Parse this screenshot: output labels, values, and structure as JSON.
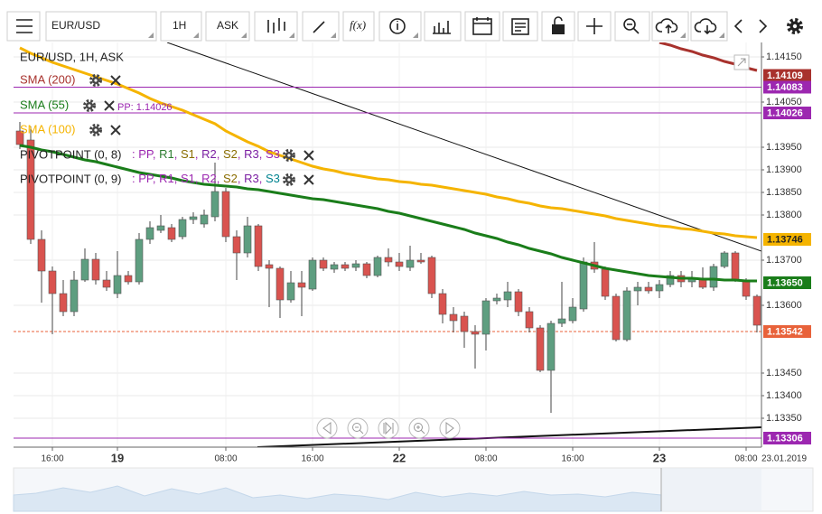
{
  "toolbar": {
    "symbol": "EUR/USD",
    "interval": "1H",
    "price_type": "ASK",
    "function_label": "f(x)"
  },
  "chart_data": {
    "type": "candlestick",
    "title": "EUR/USD, 1H, ASK",
    "date_label": "23.01.2019",
    "categories": [
      null,
      null,
      null,
      "16:00",
      null,
      null,
      null,
      null,
      null,
      "19",
      null,
      null,
      null,
      null,
      null,
      null,
      null,
      null,
      null,
      "08:00",
      null,
      null,
      null,
      null,
      null,
      null,
      null,
      "16:00",
      null,
      null,
      null,
      null,
      null,
      null,
      null,
      "22",
      null,
      null,
      null,
      null,
      null,
      null,
      null,
      "08:00",
      null,
      null,
      null,
      null,
      null,
      null,
      null,
      "16:00",
      null,
      null,
      null,
      null,
      null,
      null,
      null,
      "23",
      null,
      null,
      null,
      null,
      null,
      null,
      null,
      "08:00",
      null
    ],
    "open": [
      1.13986,
      1.13966,
      1.13746,
      1.13676,
      1.13626,
      1.13586,
      1.13656,
      1.13702,
      1.13656,
      1.13626,
      1.13666,
      1.13652,
      1.13746,
      1.13766,
      1.13772,
      1.13752,
      1.1379,
      1.1378,
      1.13796,
      1.13852,
      1.13752,
      1.13716,
      1.13776,
      1.1369,
      1.13682,
      1.13612,
      1.1365,
      1.13636,
      1.137,
      1.1368,
      1.1369,
      1.13684,
      1.13692,
      1.13666,
      1.13706,
      1.13696,
      1.13684,
      1.137,
      1.13706,
      1.13626,
      1.1358,
      1.13576,
      1.13542,
      1.13536,
      1.1361,
      1.13612,
      1.1363,
      1.13586,
      1.1355,
      1.13456,
      1.1356,
      1.13566,
      1.13592,
      1.13696,
      1.1368,
      1.1362,
      1.13524,
      1.13632,
      1.1364,
      1.13632,
      1.13646,
      1.13666,
      1.13652,
      1.1366,
      1.1364,
      1.13686,
      1.13716,
      1.13656,
      1.1362
    ],
    "high": [
      1.14006,
      1.13996,
      1.13766,
      1.13686,
      1.13656,
      1.13676,
      1.13726,
      1.13716,
      1.13676,
      1.1372,
      1.13676,
      1.1376,
      1.13786,
      1.138,
      1.1378,
      1.13796,
      1.13806,
      1.13812,
      1.13916,
      1.1386,
      1.13766,
      1.13796,
      1.1378,
      1.137,
      1.13686,
      1.13676,
      1.13676,
      1.13706,
      1.13706,
      1.13696,
      1.13696,
      1.137,
      1.13696,
      1.1371,
      1.13726,
      1.13716,
      1.13732,
      1.13716,
      1.1371,
      1.13636,
      1.13596,
      1.13586,
      1.13556,
      1.13616,
      1.13626,
      1.13652,
      1.13636,
      1.13596,
      1.13556,
      1.13566,
      1.13652,
      1.13616,
      1.13706,
      1.1374,
      1.13686,
      1.13626,
      1.1364,
      1.13652,
      1.13652,
      1.13656,
      1.13676,
      1.13676,
      1.13676,
      1.13684,
      1.13692,
      1.1372,
      1.1372,
      1.1366,
      1.13624
    ],
    "low": [
      1.13946,
      1.13736,
      1.13606,
      1.13536,
      1.13576,
      1.13576,
      1.13652,
      1.13646,
      1.13632,
      1.13616,
      1.13646,
      1.13646,
      1.13736,
      1.1376,
      1.1374,
      1.13746,
      1.1378,
      1.13772,
      1.13786,
      1.1374,
      1.13656,
      1.13706,
      1.13676,
      1.13596,
      1.13572,
      1.13606,
      1.13576,
      1.13632,
      1.13676,
      1.13672,
      1.13676,
      1.13676,
      1.1366,
      1.13662,
      1.13686,
      1.13676,
      1.13676,
      1.13692,
      1.13616,
      1.1356,
      1.1354,
      1.13506,
      1.1346,
      1.135,
      1.13602,
      1.13596,
      1.13576,
      1.1354,
      1.13452,
      1.13362,
      1.13552,
      1.1356,
      1.13586,
      1.13672,
      1.13612,
      1.1352,
      1.1352,
      1.136,
      1.13626,
      1.13616,
      1.1364,
      1.1364,
      1.1364,
      1.13636,
      1.13632,
      1.13682,
      1.13652,
      1.13612,
      1.1354
    ],
    "close": [
      1.13956,
      1.13746,
      1.13676,
      1.13626,
      1.13586,
      1.13656,
      1.13702,
      1.13656,
      1.1364,
      1.13666,
      1.13652,
      1.13746,
      1.13772,
      1.13776,
      1.13746,
      1.1379,
      1.13796,
      1.138,
      1.13852,
      1.13752,
      1.13716,
      1.13776,
      1.13686,
      1.13682,
      1.13612,
      1.1365,
      1.1364,
      1.137,
      1.13682,
      1.1369,
      1.13682,
      1.13692,
      1.13666,
      1.13706,
      1.13696,
      1.13686,
      1.137,
      1.13696,
      1.13626,
      1.1358,
      1.13566,
      1.13542,
      1.13536,
      1.1361,
      1.13616,
      1.1363,
      1.13586,
      1.1355,
      1.13456,
      1.1356,
      1.1357,
      1.13596,
      1.13696,
      1.1368,
      1.1362,
      1.13524,
      1.13632,
      1.1364,
      1.13632,
      1.13646,
      1.13666,
      1.13652,
      1.1366,
      1.1364,
      1.13686,
      1.13716,
      1.13656,
      1.1362,
      1.13556
    ],
    "up_color": "#5e9e80",
    "down_color": "#d9534f",
    "series": [
      {
        "name": "SMA (200)",
        "color": "#a8322d",
        "values": [
          null,
          null,
          null,
          null,
          null,
          null,
          null,
          null,
          null,
          null,
          null,
          null,
          null,
          null,
          null,
          null,
          null,
          null,
          null,
          null,
          null,
          null,
          null,
          null,
          null,
          null,
          null,
          null,
          null,
          null,
          null,
          null,
          null,
          null,
          null,
          null,
          null,
          null,
          null,
          null,
          null,
          null,
          null,
          null,
          null,
          null,
          null,
          null,
          null,
          null,
          null,
          null,
          null,
          null,
          null,
          null,
          null,
          null,
          null,
          1.14182,
          1.14176,
          1.14168,
          1.14162,
          1.14154,
          1.14148,
          1.1414,
          1.14134,
          1.14126,
          1.1412
        ]
      },
      {
        "name": "SMA (55)",
        "color": "#1a7d1a",
        "values": [
          1.13954,
          1.1395,
          1.13944,
          1.1394,
          1.13934,
          1.13928,
          1.13922,
          1.13918,
          1.13912,
          1.13906,
          1.139,
          1.13894,
          1.1389,
          1.13886,
          1.13882,
          1.13876,
          1.13872,
          1.13868,
          1.13866,
          1.13864,
          1.13862,
          1.13858,
          1.13856,
          1.13852,
          1.13848,
          1.13844,
          1.1384,
          1.13836,
          1.13834,
          1.1383,
          1.13826,
          1.13822,
          1.13818,
          1.13814,
          1.13808,
          1.13804,
          1.13798,
          1.13792,
          1.13786,
          1.1378,
          1.13774,
          1.13768,
          1.1376,
          1.13754,
          1.13748,
          1.1374,
          1.13734,
          1.13726,
          1.1372,
          1.13714,
          1.13706,
          1.137,
          1.13694,
          1.13688,
          1.13682,
          1.13678,
          1.13674,
          1.1367,
          1.13666,
          1.13664,
          1.13662,
          1.1366,
          1.1366,
          1.13658,
          1.13658,
          1.13656,
          1.13656,
          1.13654,
          1.13654
        ]
      },
      {
        "name": "SMA (100)",
        "color": "#f5b400",
        "values": [
          1.1417,
          1.14158,
          1.14148,
          1.14138,
          1.1413,
          1.14122,
          1.14114,
          1.14106,
          1.14098,
          1.1409,
          1.1408,
          1.1407,
          1.14058,
          1.14048,
          1.1404,
          1.14032,
          1.14022,
          1.14012,
          1.14002,
          1.13986,
          1.13974,
          1.13962,
          1.13952,
          1.1394,
          1.13932,
          1.13924,
          1.13916,
          1.13908,
          1.13902,
          1.13898,
          1.13892,
          1.13888,
          1.13884,
          1.1388,
          1.13878,
          1.13874,
          1.13872,
          1.13868,
          1.13866,
          1.13862,
          1.13858,
          1.13854,
          1.1385,
          1.13846,
          1.1384,
          1.13836,
          1.1383,
          1.13826,
          1.1382,
          1.13816,
          1.13814,
          1.1381,
          1.13806,
          1.13802,
          1.13798,
          1.13792,
          1.13788,
          1.13784,
          1.1378,
          1.13776,
          1.13774,
          1.1377,
          1.13768,
          1.13764,
          1.1376,
          1.13758,
          1.13754,
          1.13752,
          1.1375
        ]
      }
    ],
    "pp_label": "PP: 1.14026",
    "pp_color": "#9c27b0",
    "legend_prefix": ": ",
    "legend_separator": ", ",
    "pivot_indicators": [
      {
        "name": "PIVOTPOINT (0, 8)",
        "levels": [
          {
            "text": "PP",
            "color": "#9c27b0"
          },
          {
            "text": "R1",
            "color": "#2e7d32"
          },
          {
            "text": "S1",
            "color": "#8a6d00"
          },
          {
            "text": "R2",
            "color": "#7b1fa2"
          },
          {
            "text": "S2",
            "color": "#8a6d00"
          },
          {
            "text": "R3",
            "color": "#7b1fa2"
          },
          {
            "text": "S3",
            "color": "#9c27b0"
          }
        ]
      },
      {
        "name": "PIVOTPOINT (0, 9)",
        "levels": [
          {
            "text": "PP",
            "color": "#9c27b0"
          },
          {
            "text": "R1",
            "color": "#9c27b0"
          },
          {
            "text": "S1",
            "color": "#9c27b0"
          },
          {
            "text": "R2",
            "color": "#9c27b0"
          },
          {
            "text": "S2",
            "color": "#8a6d00"
          },
          {
            "text": "R3",
            "color": "#7b1fa2"
          },
          {
            "text": "S3",
            "color": "#00838f"
          }
        ]
      }
    ],
    "price_tags": [
      {
        "value": 1.14109,
        "label": "1.14109",
        "color": "#a8322d"
      },
      {
        "value": 1.14083,
        "label": "1.14083",
        "color": "#9c27b0",
        "line": "solid"
      },
      {
        "value": 1.14026,
        "label": "1.14026",
        "color": "#9c27b0",
        "line": "solid"
      },
      {
        "value": 1.13746,
        "label": "1.13746",
        "color": "#f5b400",
        "text_color": "#222222"
      },
      {
        "value": 1.1365,
        "label": "1.13650",
        "color": "#1a7d1a"
      },
      {
        "value": 1.13542,
        "label": "1.13542",
        "color": "#e8623a",
        "line": "dashed"
      },
      {
        "value": 1.13306,
        "label": "1.13306",
        "color": "#9c27b0",
        "line": "solid"
      }
    ],
    "ylim": [
      1.13296,
      1.14182
    ],
    "yticks": [
      {
        "value": 1.1415,
        "label": "1.14150"
      },
      {
        "value": 1.1405,
        "label": "1.14050"
      },
      {
        "value": 1.1395,
        "label": "1.13950"
      },
      {
        "value": 1.139,
        "label": "1.13900"
      },
      {
        "value": 1.1385,
        "label": "1.13850"
      },
      {
        "value": 1.138,
        "label": "1.13800"
      },
      {
        "value": 1.137,
        "label": "1.13700"
      },
      {
        "value": 1.136,
        "label": "1.13600"
      },
      {
        "value": 1.1345,
        "label": "1.13450"
      },
      {
        "value": 1.134,
        "label": "1.13400"
      },
      {
        "value": 1.1335,
        "label": "1.13350"
      }
    ],
    "grid": true
  }
}
